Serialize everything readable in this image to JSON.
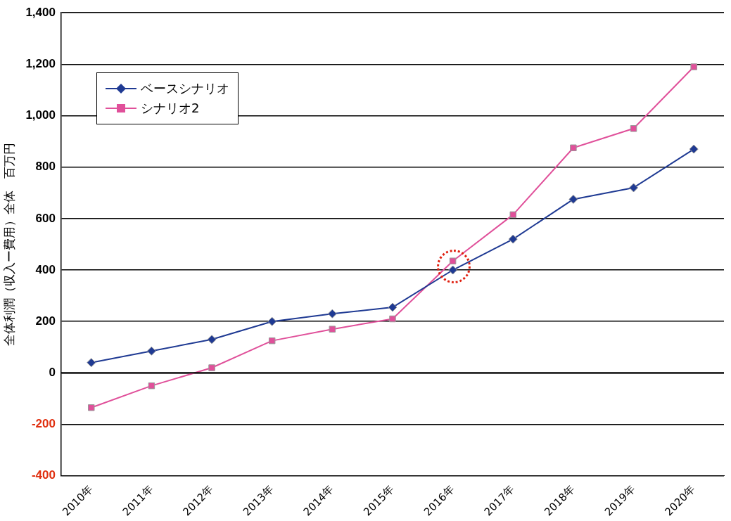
{
  "chart_data": {
    "type": "line",
    "ylabel": "全体利潤（収入ー費用）全体　百万円",
    "categories": [
      "2010年",
      "2011年",
      "2012年",
      "2013年",
      "2014年",
      "2015年",
      "2016年",
      "2017年",
      "2018年",
      "2019年",
      "2020年"
    ],
    "series": [
      {
        "name": "ベースシナリオ",
        "color": "#1f3a93",
        "marker": "diamond",
        "values": [
          40,
          85,
          130,
          200,
          230,
          255,
          400,
          520,
          675,
          720,
          870
        ]
      },
      {
        "name": "シナリオ2",
        "color": "#e0509a",
        "marker": "square",
        "values": [
          -135,
          -50,
          20,
          125,
          170,
          210,
          435,
          615,
          875,
          950,
          1190
        ]
      }
    ],
    "ylim": [
      -400,
      1400
    ],
    "yticks": [
      -400,
      -200,
      0,
      200,
      400,
      600,
      800,
      {
        "value": 1000,
        "label": "1,000"
      },
      {
        "value": 1200,
        "label": "1,200"
      },
      {
        "value": 1400,
        "label": "1,400"
      }
    ],
    "grid": "y",
    "legend": "top left"
  }
}
